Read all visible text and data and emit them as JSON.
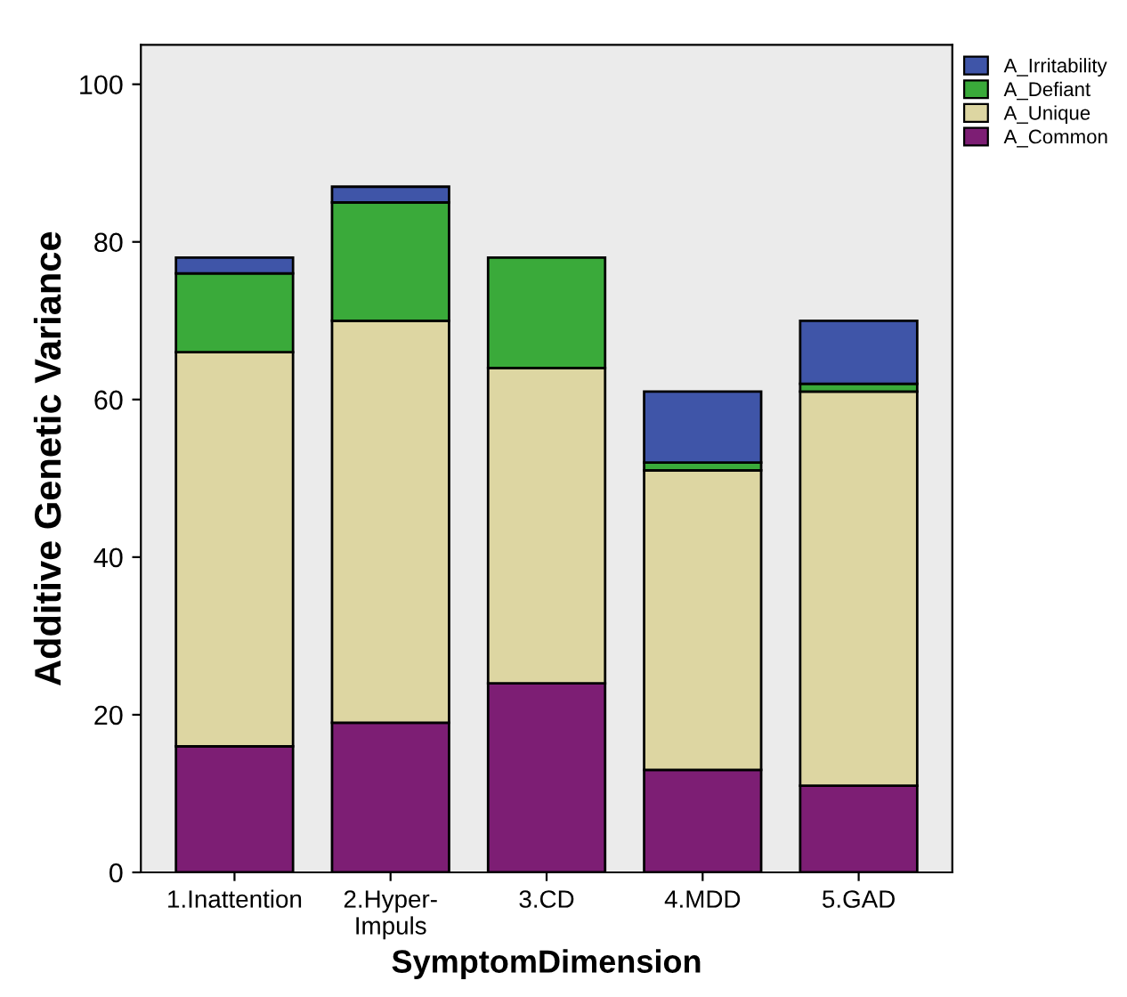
{
  "chart_data": {
    "type": "bar",
    "stacked": true,
    "xlabel": "SymptomDimension",
    "ylabel": "Additive Genetic Variance",
    "categories": [
      "1.Inattention",
      "2.Hyper-\nImpuls",
      "3.CD",
      "4.MDD",
      "5.GAD"
    ],
    "series": [
      {
        "name": "A_Common",
        "color": "#7d1e74",
        "values": [
          16,
          19,
          24,
          13,
          11
        ]
      },
      {
        "name": "A_Unique",
        "color": "#ddd6a2",
        "values": [
          50,
          51,
          40,
          38,
          50
        ]
      },
      {
        "name": "A_Defiant",
        "color": "#3aaa3a",
        "values": [
          10,
          15,
          14,
          1,
          1
        ]
      },
      {
        "name": "A_Irritability",
        "color": "#3f55a8",
        "values": [
          2,
          2,
          null,
          9,
          8
        ]
      }
    ],
    "ylim": [
      0,
      105
    ],
    "yticks": [
      0,
      20,
      40,
      60,
      80,
      100
    ],
    "grid": false,
    "legend": "top right"
  }
}
